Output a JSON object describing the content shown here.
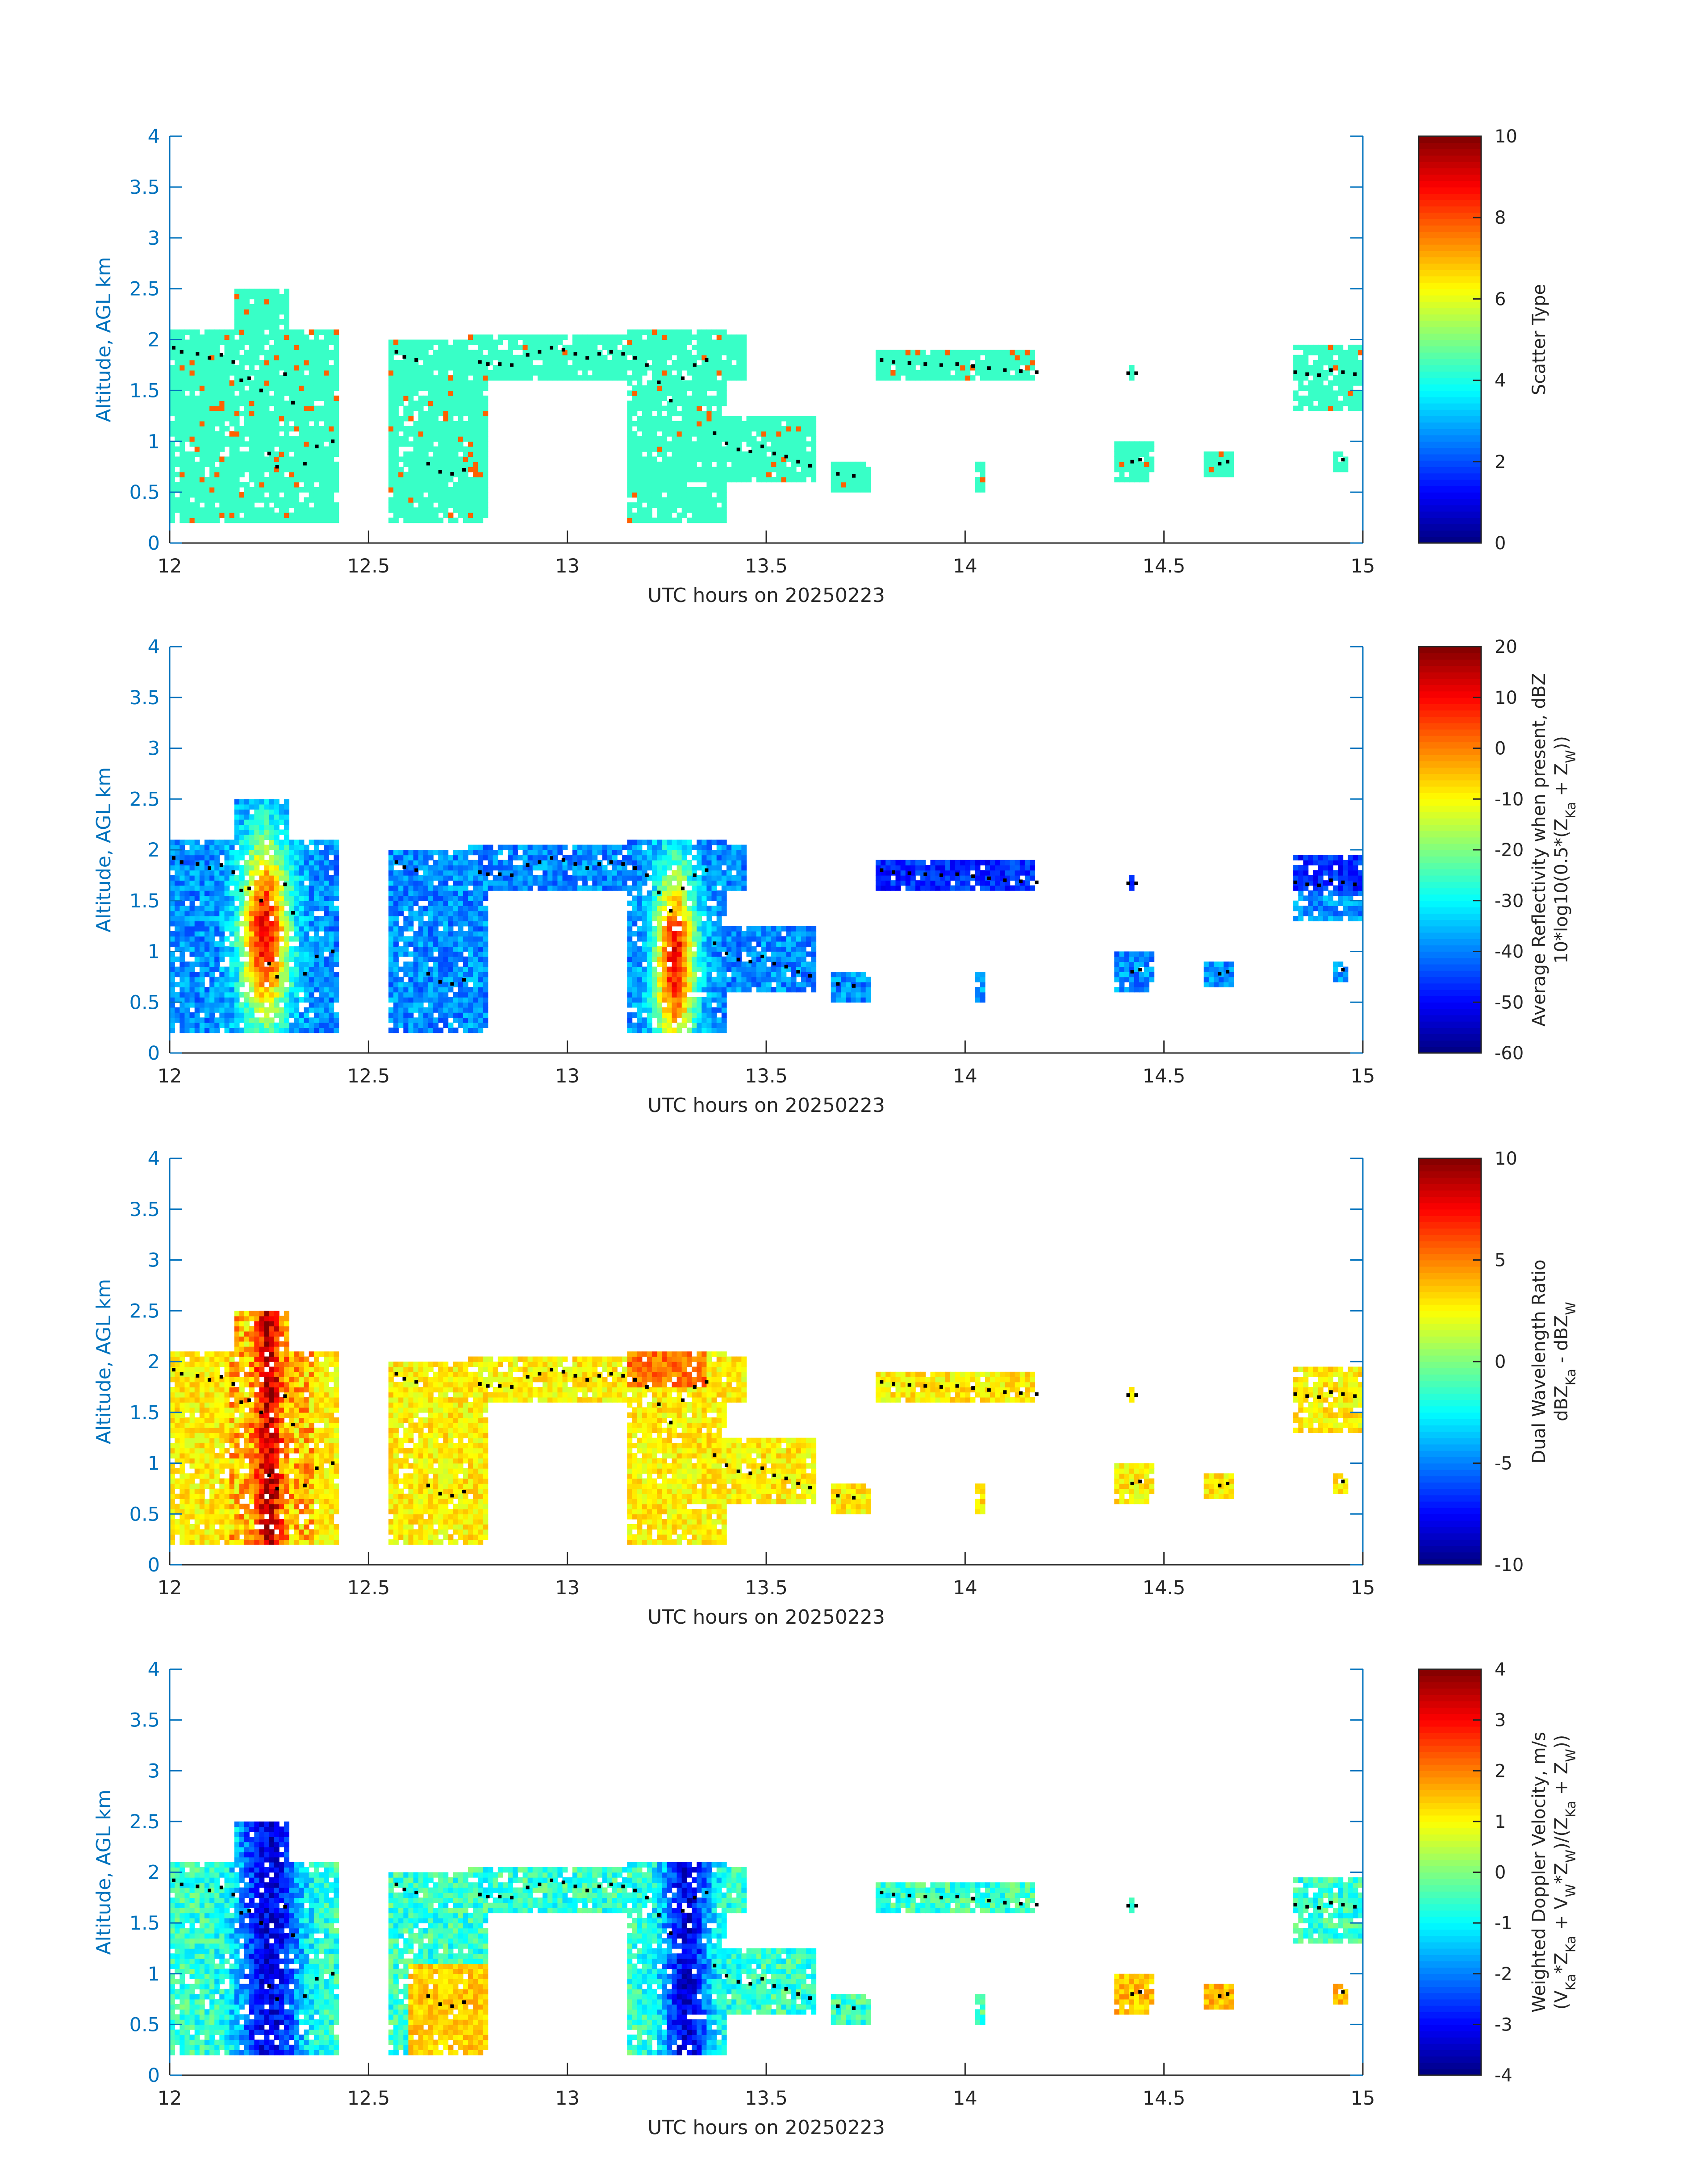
{
  "chart_data": [
    {
      "type": "heatmap",
      "xlabel": "UTC hours on 20250223",
      "ylabel": "Altitude, AGL km",
      "xlim": [
        12,
        15
      ],
      "ylim": [
        0,
        4
      ],
      "xticks": [
        "12",
        "12.5",
        "13",
        "13.5",
        "14",
        "14.5",
        "15"
      ],
      "yticks": [
        "0",
        "0.5",
        "1",
        "1.5",
        "2",
        "2.5",
        "3",
        "3.5",
        "4"
      ],
      "colorbar": {
        "label_lines": [
          "Scatter Type"
        ],
        "clim": [
          0,
          10
        ],
        "ticks": [
          "0",
          "2",
          "4",
          "6",
          "8",
          "10"
        ],
        "colormap": "jet"
      },
      "field": "scatter"
    },
    {
      "type": "heatmap",
      "xlabel": "UTC hours on 20250223",
      "ylabel": "Altitude, AGL km",
      "xlim": [
        12,
        15
      ],
      "ylim": [
        0,
        4
      ],
      "xticks": [
        "12",
        "12.5",
        "13",
        "13.5",
        "14",
        "14.5",
        "15"
      ],
      "yticks": [
        "0",
        "0.5",
        "1",
        "1.5",
        "2",
        "2.5",
        "3",
        "3.5",
        "4"
      ],
      "colorbar": {
        "label_lines": [
          "Average Reflectivity when present, dBZ",
          "10*log10(0.5*(Z",
          "Ka",
          " + Z",
          "W",
          "))"
        ],
        "clim": [
          -60,
          20
        ],
        "ticks": [
          "-60",
          "-50",
          "-40",
          "-30",
          "-20",
          "-10",
          "0",
          "10",
          "20"
        ],
        "colormap": "jet"
      },
      "field": "reflectivity"
    },
    {
      "type": "heatmap",
      "xlabel": "UTC hours on 20250223",
      "ylabel": "Altitude, AGL km",
      "xlim": [
        12,
        15
      ],
      "ylim": [
        0,
        4
      ],
      "xticks": [
        "12",
        "12.5",
        "13",
        "13.5",
        "14",
        "14.5",
        "15"
      ],
      "yticks": [
        "0",
        "0.5",
        "1",
        "1.5",
        "2",
        "2.5",
        "3",
        "3.5",
        "4"
      ],
      "colorbar": {
        "label_lines": [
          "Dual Wavelength Ratio",
          "dBZ",
          "Ka",
          " - dBZ",
          "W"
        ],
        "clim": [
          -10,
          10
        ],
        "ticks": [
          "-10",
          "-5",
          "0",
          "5",
          "10"
        ],
        "colormap": "jet"
      },
      "field": "dwr"
    },
    {
      "type": "heatmap",
      "xlabel": "UTC hours on 20250223",
      "ylabel": "Altitude, AGL km",
      "xlim": [
        12,
        15
      ],
      "ylim": [
        0,
        4
      ],
      "xticks": [
        "12",
        "12.5",
        "13",
        "13.5",
        "14",
        "14.5",
        "15"
      ],
      "yticks": [
        "0",
        "0.5",
        "1",
        "1.5",
        "2",
        "2.5",
        "3",
        "3.5",
        "4"
      ],
      "colorbar": {
        "label_lines": [
          "Weighted Doppler Velocity, m/s",
          "(V",
          "Ka",
          "*Z",
          "Ka",
          " + V",
          "W",
          "*Z",
          "W",
          ")/(Z",
          "Ka",
          " + Z",
          "W",
          "))"
        ],
        "clim": [
          -4,
          4
        ],
        "ticks": [
          "-4",
          "-3",
          "-2",
          "-1",
          "0",
          "1",
          "2",
          "3",
          "4"
        ],
        "colormap": "jet"
      },
      "field": "velocity"
    }
  ],
  "cloud_regions": [
    {
      "x0": 12.0,
      "x1": 12.42,
      "y0": 0.2,
      "y1": 2.1
    },
    {
      "x0": 12.16,
      "x1": 12.3,
      "y0": 2.1,
      "y1": 2.5
    },
    {
      "x0": 12.55,
      "x1": 12.8,
      "y0": 0.2,
      "y1": 2.0
    },
    {
      "x0": 12.75,
      "x1": 13.45,
      "y0": 1.6,
      "y1": 2.05
    },
    {
      "x0": 13.15,
      "x1": 13.4,
      "y0": 0.2,
      "y1": 2.1
    },
    {
      "x0": 13.35,
      "x1": 13.62,
      "y0": 0.6,
      "y1": 1.25
    },
    {
      "x0": 13.66,
      "x1": 13.76,
      "y0": 0.5,
      "y1": 0.8
    },
    {
      "x0": 13.77,
      "x1": 14.18,
      "y0": 1.6,
      "y1": 1.9
    },
    {
      "x0": 14.03,
      "x1": 14.05,
      "y0": 0.5,
      "y1": 0.8
    },
    {
      "x0": 14.38,
      "x1": 14.47,
      "y0": 0.6,
      "y1": 1.0
    },
    {
      "x0": 14.41,
      "x1": 14.43,
      "y0": 1.6,
      "y1": 1.75
    },
    {
      "x0": 14.6,
      "x1": 14.68,
      "y0": 0.65,
      "y1": 0.9
    },
    {
      "x0": 14.82,
      "x1": 15.0,
      "y0": 1.3,
      "y1": 1.95
    },
    {
      "x0": 14.92,
      "x1": 14.96,
      "y0": 0.7,
      "y1": 0.9
    }
  ],
  "tracer_points": [
    [
      12.01,
      1.92
    ],
    [
      12.03,
      1.88
    ],
    [
      12.07,
      1.86
    ],
    [
      12.1,
      1.82
    ],
    [
      12.13,
      1.85
    ],
    [
      12.16,
      1.78
    ],
    [
      12.18,
      1.6
    ],
    [
      12.2,
      1.62
    ],
    [
      12.23,
      1.5
    ],
    [
      12.25,
      0.88
    ],
    [
      12.27,
      0.75
    ],
    [
      12.29,
      1.66
    ],
    [
      12.31,
      1.38
    ],
    [
      12.34,
      0.78
    ],
    [
      12.37,
      0.95
    ],
    [
      12.41,
      1.0
    ],
    [
      12.57,
      1.88
    ],
    [
      12.59,
      1.83
    ],
    [
      12.62,
      1.8
    ],
    [
      12.65,
      0.78
    ],
    [
      12.68,
      0.7
    ],
    [
      12.71,
      0.68
    ],
    [
      12.74,
      0.72
    ],
    [
      12.78,
      1.78
    ],
    [
      12.8,
      1.76
    ],
    [
      12.83,
      1.76
    ],
    [
      12.86,
      1.75
    ],
    [
      12.9,
      1.85
    ],
    [
      12.93,
      1.88
    ],
    [
      12.96,
      1.92
    ],
    [
      12.99,
      1.9
    ],
    [
      13.02,
      1.86
    ],
    [
      13.05,
      1.82
    ],
    [
      13.08,
      1.86
    ],
    [
      13.11,
      1.88
    ],
    [
      13.14,
      1.86
    ],
    [
      13.17,
      1.82
    ],
    [
      13.2,
      1.75
    ],
    [
      13.23,
      1.58
    ],
    [
      13.26,
      1.4
    ],
    [
      13.29,
      1.62
    ],
    [
      13.32,
      1.75
    ],
    [
      13.35,
      1.8
    ],
    [
      13.37,
      1.08
    ],
    [
      13.4,
      0.98
    ],
    [
      13.43,
      0.92
    ],
    [
      13.46,
      0.9
    ],
    [
      13.49,
      0.95
    ],
    [
      13.52,
      0.88
    ],
    [
      13.55,
      0.85
    ],
    [
      13.58,
      0.8
    ],
    [
      13.61,
      0.76
    ],
    [
      13.68,
      0.68
    ],
    [
      13.72,
      0.66
    ],
    [
      13.79,
      1.8
    ],
    [
      13.82,
      1.78
    ],
    [
      13.86,
      1.77
    ],
    [
      13.9,
      1.76
    ],
    [
      13.94,
      1.75
    ],
    [
      13.98,
      1.76
    ],
    [
      14.02,
      1.74
    ],
    [
      14.06,
      1.72
    ],
    [
      14.1,
      1.7
    ],
    [
      14.14,
      1.69
    ],
    [
      14.18,
      1.68
    ],
    [
      14.41,
      1.67
    ],
    [
      14.43,
      1.67
    ],
    [
      14.42,
      0.8
    ],
    [
      14.44,
      0.82
    ],
    [
      14.64,
      0.78
    ],
    [
      14.66,
      0.8
    ],
    [
      14.83,
      1.68
    ],
    [
      14.86,
      1.66
    ],
    [
      14.89,
      1.65
    ],
    [
      14.92,
      1.7
    ],
    [
      14.95,
      1.68
    ],
    [
      14.98,
      1.66
    ],
    [
      14.95,
      0.82
    ]
  ]
}
